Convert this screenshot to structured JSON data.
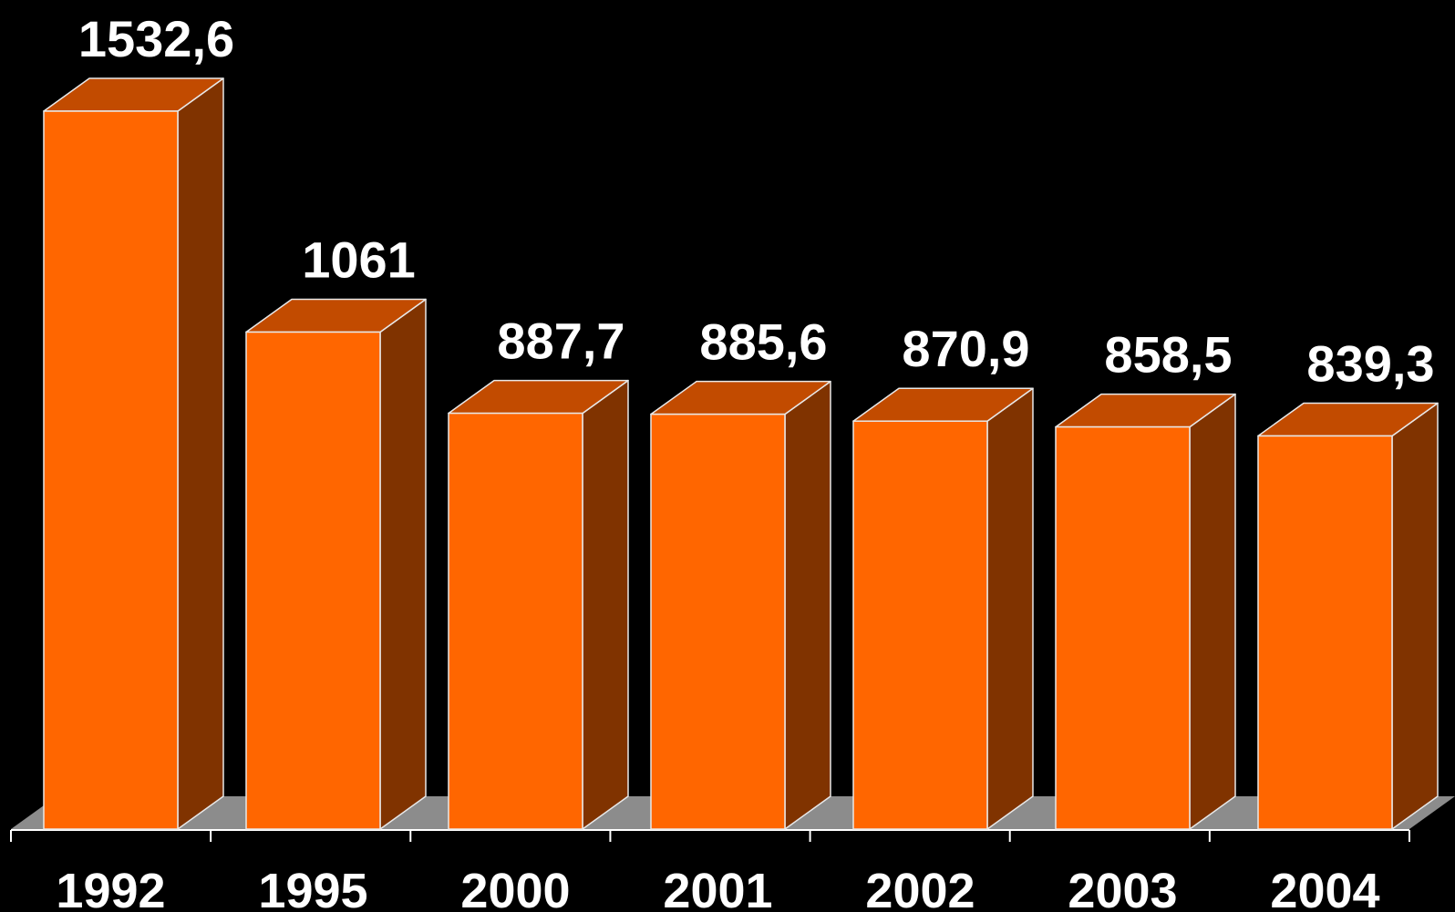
{
  "chart_data": {
    "type": "bar",
    "categories": [
      "1992",
      "1995",
      "2000",
      "2001",
      "2002",
      "2003",
      "2004"
    ],
    "values": [
      1532.6,
      1061,
      887.7,
      885.6,
      870.9,
      858.5,
      839.3
    ],
    "value_labels": [
      "1532,6",
      "1061",
      "887,7",
      "885,6",
      "870,9",
      "858,5",
      "839,3"
    ],
    "title": "",
    "xlabel": "",
    "ylabel": "",
    "ylim": [
      0,
      1532.6
    ],
    "grid": false,
    "legend": "none",
    "style": "3d-columns",
    "colors": {
      "background": "#000000",
      "bar_front": "#ff6600",
      "bar_top": "#c24b00",
      "bar_side": "#803300",
      "bar_edge": "#e8e8e8",
      "floor": "#8c8c8c",
      "text": "#ffffff"
    }
  }
}
